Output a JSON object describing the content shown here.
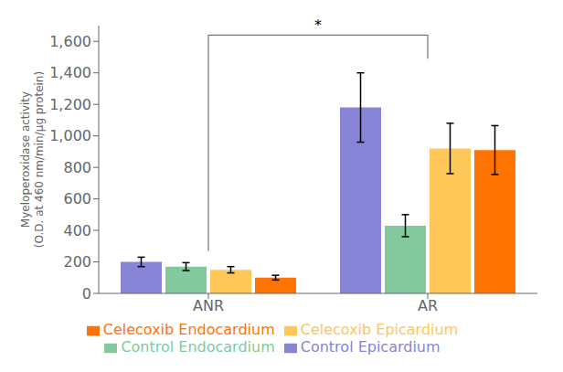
{
  "chart_data": {
    "type": "bar",
    "y_label": "Myeloperoxidase activity\n(O.D. at 460 nm/min/µg protein)",
    "categories": [
      "ANR",
      "AR"
    ],
    "series": [
      {
        "name": "Control Epicardium",
        "color": "#8884d8",
        "values": [
          200,
          1180
        ],
        "errors": [
          30,
          220
        ]
      },
      {
        "name": "Control Endocardium",
        "color": "#82ca9d",
        "values": [
          170,
          430
        ],
        "errors": [
          25,
          70
        ]
      },
      {
        "name": "Celecoxib Epicardium",
        "color": "#ffc658",
        "values": [
          150,
          920
        ],
        "errors": [
          20,
          160
        ]
      },
      {
        "name": "Celecoxib Endocardium",
        "color": "#ff7300",
        "values": [
          100,
          910
        ],
        "errors": [
          15,
          155
        ]
      }
    ],
    "ylim": [
      0,
      1700
    ],
    "yticks": [
      0,
      200,
      400,
      600,
      800,
      {
        "value": 1000,
        "label": "1,000"
      },
      {
        "value": 1200,
        "label": "1,200"
      },
      {
        "value": 1400,
        "label": "1,400"
      },
      {
        "value": 1600,
        "label": "1,600"
      }
    ],
    "grid": false,
    "legend": "bottom",
    "annotations": [
      {
        "text": "*",
        "bracket": {
          "from": "ANR",
          "to": "AR",
          "y_from": 270,
          "y_to": 1490,
          "y": 1640
        }
      }
    ]
  }
}
